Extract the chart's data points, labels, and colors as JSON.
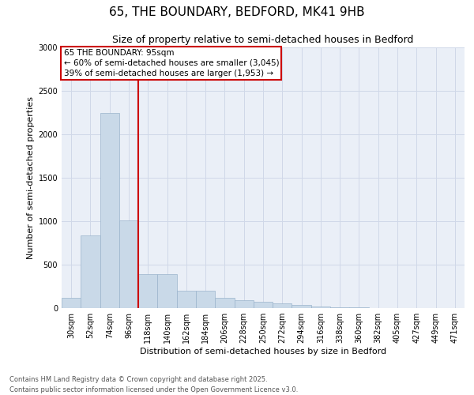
{
  "title_line1": "65, THE BOUNDARY, BEDFORD, MK41 9HB",
  "title_line2": "Size of property relative to semi-detached houses in Bedford",
  "xlabel": "Distribution of semi-detached houses by size in Bedford",
  "ylabel": "Number of semi-detached properties",
  "categories": [
    "30sqm",
    "52sqm",
    "74sqm",
    "96sqm",
    "118sqm",
    "140sqm",
    "162sqm",
    "184sqm",
    "206sqm",
    "228sqm",
    "250sqm",
    "272sqm",
    "294sqm",
    "316sqm",
    "338sqm",
    "360sqm",
    "382sqm",
    "405sqm",
    "427sqm",
    "449sqm",
    "471sqm"
  ],
  "values": [
    120,
    840,
    2250,
    1010,
    390,
    390,
    200,
    200,
    115,
    95,
    75,
    55,
    35,
    18,
    8,
    5,
    3,
    2,
    1,
    1,
    0
  ],
  "bar_color": "#c9d9e8",
  "bar_edge_color": "#9ab4cc",
  "vline_x_index": 3,
  "vline_color": "#cc0000",
  "annotation_box_text": "65 THE BOUNDARY: 95sqm\n← 60% of semi-detached houses are smaller (3,045)\n39% of semi-detached houses are larger (1,953) →",
  "annotation_box_color": "#cc0000",
  "annotation_bg": "#ffffff",
  "ylim": [
    0,
    3000
  ],
  "yticks": [
    0,
    500,
    1000,
    1500,
    2000,
    2500,
    3000
  ],
  "grid_color": "#d0d8e8",
  "bg_color": "#eaeff7",
  "footnote1": "Contains HM Land Registry data © Crown copyright and database right 2025.",
  "footnote2": "Contains public sector information licensed under the Open Government Licence v3.0.",
  "title_fontsize": 11,
  "subtitle_fontsize": 9,
  "label_fontsize": 8,
  "tick_fontsize": 7,
  "annot_fontsize": 7.5
}
